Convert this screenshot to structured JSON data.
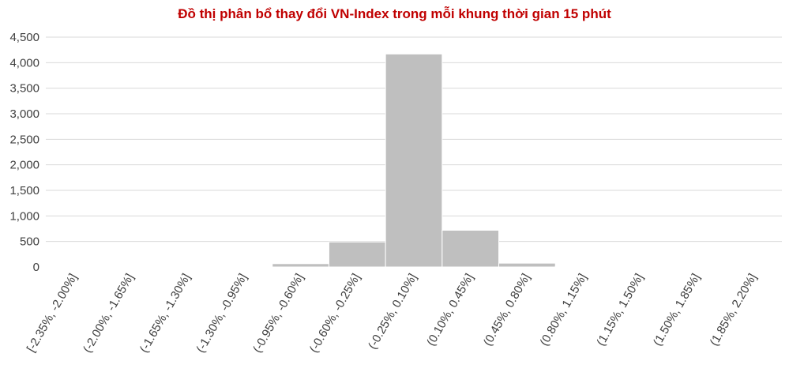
{
  "colors": {
    "title": "#c00000",
    "bar_fill": "#bfbfbf",
    "bar_stroke": "#ffffff",
    "grid": "#d9d9d9",
    "axis_text": "#404040"
  },
  "chart_data": {
    "type": "bar",
    "title": "Đồ thị phân bổ thay đổi VN-Index trong mỗi khung thời gian 15 phút",
    "xlabel": "",
    "ylabel": "",
    "categories": [
      "[-2.35%, -2.00%]",
      "(-2.00%, -1.65%]",
      "(-1.65%, -1.30%]",
      "(-1.30%, -0.95%]",
      "(-0.95%, -0.60%]",
      "(-0.60%, -0.25%]",
      "(-0.25%, 0.10%]",
      "(0.10%, 0.45%]",
      "(0.45%, 0.80%]",
      "(0.80%, 1.15%]",
      "(1.15%, 1.50%]",
      "(1.50%, 1.85%]",
      "(1.85%, 2.20%]"
    ],
    "values": [
      2,
      3,
      4,
      15,
      65,
      490,
      4170,
      720,
      75,
      8,
      3,
      2,
      1
    ],
    "ylim": [
      0,
      4500
    ],
    "yticks": [
      "0",
      "500",
      "1,000",
      "1,500",
      "2,000",
      "2,500",
      "3,000",
      "3,500",
      "4,000",
      "4,500"
    ],
    "ytick_values": [
      0,
      500,
      1000,
      1500,
      2000,
      2500,
      3000,
      3500,
      4000,
      4500
    ],
    "grid": true,
    "legend": "none"
  }
}
